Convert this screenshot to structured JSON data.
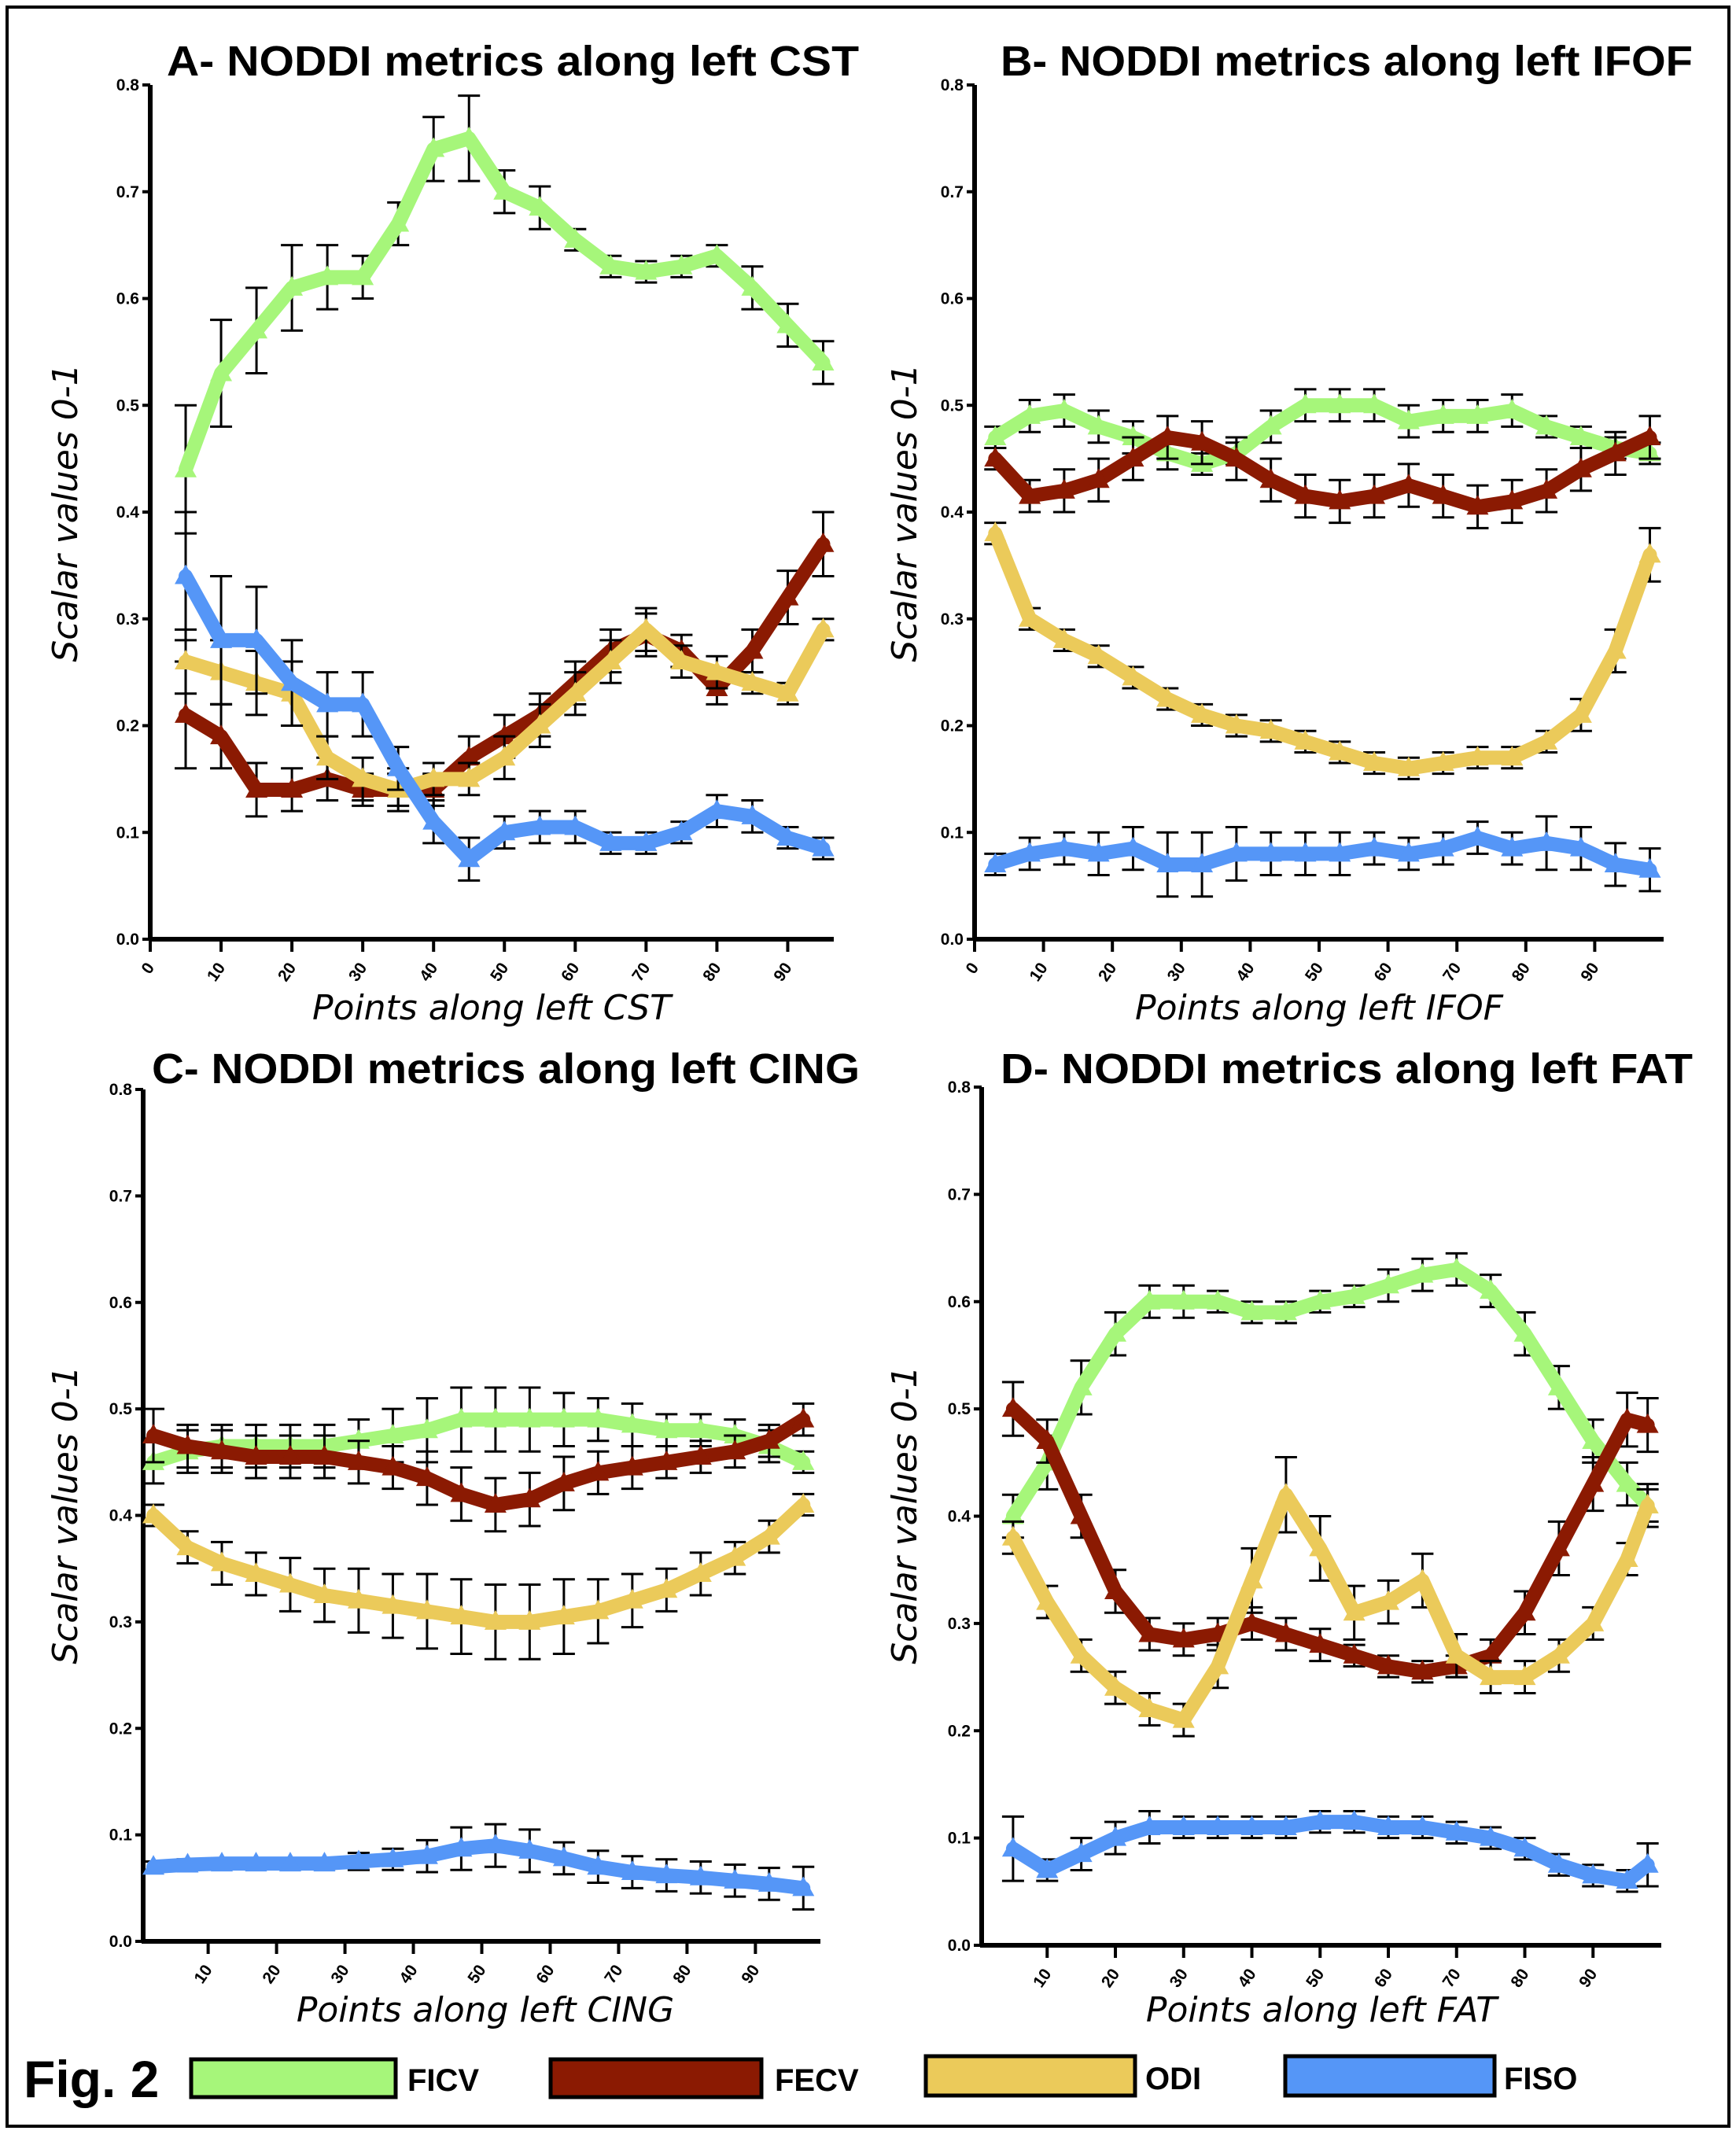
{
  "figure_label": "Fig. 2",
  "legend": [
    {
      "name": "FICV",
      "color": "#a6f67a"
    },
    {
      "name": "FECV",
      "color": "#8b1a02"
    },
    {
      "name": "ODI",
      "color": "#ebca5a"
    },
    {
      "name": "FISO",
      "color": "#5596f7"
    }
  ],
  "chart_data": [
    {
      "type": "line",
      "title": "A- NODDI metrics along left CST",
      "xlabel": "Points along left CST",
      "ylabel": "Scalar values 0-1",
      "xlim": [
        0,
        96.5
      ],
      "ylim": [
        0,
        0.8
      ],
      "xticks": [
        "0",
        "10",
        "20",
        "30",
        "40",
        "50",
        "60",
        "70",
        "80",
        "90"
      ],
      "yticks": [
        "0.0",
        "0.1",
        "0.2",
        "0.3",
        "0.4",
        "0.5",
        "0.6",
        "0.7",
        "0.8"
      ],
      "x": [
        5,
        10,
        15,
        20,
        25,
        30,
        35,
        40,
        45,
        50,
        55,
        60,
        65,
        70,
        75,
        80,
        85,
        90,
        95
      ],
      "series": [
        {
          "name": "FICV",
          "values": [
            0.44,
            0.53,
            0.57,
            0.61,
            0.62,
            0.62,
            0.67,
            0.74,
            0.75,
            0.7,
            0.685,
            0.655,
            0.63,
            0.625,
            0.63,
            0.64,
            0.61,
            0.575,
            0.54
          ],
          "error": [
            0.06,
            0.05,
            0.04,
            0.04,
            0.03,
            0.02,
            0.02,
            0.03,
            0.04,
            0.02,
            0.02,
            0.01,
            0.01,
            0.01,
            0.01,
            0.01,
            0.02,
            0.02,
            0.02
          ]
        },
        {
          "name": "FECV",
          "values": [
            0.21,
            0.19,
            0.14,
            0.14,
            0.15,
            0.14,
            0.14,
            0.14,
            0.17,
            0.19,
            0.21,
            0.24,
            0.27,
            0.285,
            0.27,
            0.235,
            0.27,
            0.32,
            0.37
          ],
          "error": [
            0.05,
            0.03,
            0.025,
            0.02,
            0.02,
            0.015,
            0.015,
            0.015,
            0.02,
            0.02,
            0.02,
            0.02,
            0.02,
            0.02,
            0.015,
            0.015,
            0.02,
            0.025,
            0.03
          ]
        },
        {
          "name": "ODI",
          "values": [
            0.26,
            0.25,
            0.24,
            0.23,
            0.17,
            0.15,
            0.14,
            0.15,
            0.15,
            0.17,
            0.2,
            0.23,
            0.26,
            0.29,
            0.26,
            0.25,
            0.24,
            0.23,
            0.29
          ],
          "error": [
            0.03,
            0.03,
            0.03,
            0.03,
            0.02,
            0.02,
            0.02,
            0.015,
            0.015,
            0.02,
            0.02,
            0.02,
            0.02,
            0.02,
            0.015,
            0.015,
            0.01,
            0.01,
            0.01
          ]
        },
        {
          "name": "FISO",
          "values": [
            0.34,
            0.28,
            0.28,
            0.24,
            0.22,
            0.22,
            0.16,
            0.11,
            0.075,
            0.1,
            0.105,
            0.105,
            0.09,
            0.09,
            0.1,
            0.12,
            0.115,
            0.095,
            0.085
          ],
          "error": [
            0.06,
            0.06,
            0.05,
            0.04,
            0.03,
            0.03,
            0.02,
            0.02,
            0.02,
            0.015,
            0.015,
            0.015,
            0.01,
            0.01,
            0.01,
            0.015,
            0.015,
            0.01,
            0.01
          ]
        }
      ]
    },
    {
      "type": "line",
      "title": "B- NODDI metrics along left IFOF",
      "xlabel": "Points along left IFOF",
      "ylabel": "Scalar values 0-1",
      "xlim": [
        0,
        100
      ],
      "ylim": [
        0,
        0.8
      ],
      "xticks": [
        "0",
        "10",
        "20",
        "30",
        "40",
        "50",
        "60",
        "70",
        "80",
        "90"
      ],
      "yticks": [
        "0.0",
        "0.1",
        "0.2",
        "0.3",
        "0.4",
        "0.5",
        "0.6",
        "0.7",
        "0.8"
      ],
      "x": [
        3,
        8,
        13,
        18,
        23,
        28,
        33,
        38,
        43,
        48,
        53,
        58,
        63,
        68,
        73,
        78,
        83,
        88,
        93,
        98
      ],
      "series": [
        {
          "name": "FICV",
          "values": [
            0.47,
            0.49,
            0.495,
            0.48,
            0.47,
            0.455,
            0.445,
            0.455,
            0.48,
            0.5,
            0.5,
            0.5,
            0.485,
            0.49,
            0.49,
            0.495,
            0.48,
            0.47,
            0.46,
            0.455
          ],
          "error": [
            0.01,
            0.015,
            0.015,
            0.015,
            0.015,
            0.015,
            0.01,
            0.01,
            0.015,
            0.015,
            0.015,
            0.015,
            0.015,
            0.015,
            0.015,
            0.015,
            0.01,
            0.01,
            0.01,
            0.01
          ]
        },
        {
          "name": "FECV",
          "values": [
            0.45,
            0.415,
            0.42,
            0.43,
            0.45,
            0.47,
            0.465,
            0.45,
            0.43,
            0.415,
            0.41,
            0.415,
            0.425,
            0.415,
            0.405,
            0.41,
            0.42,
            0.44,
            0.455,
            0.47
          ],
          "error": [
            0.01,
            0.015,
            0.02,
            0.02,
            0.02,
            0.02,
            0.02,
            0.02,
            0.02,
            0.02,
            0.02,
            0.02,
            0.02,
            0.02,
            0.02,
            0.02,
            0.02,
            0.02,
            0.02,
            0.02
          ]
        },
        {
          "name": "ODI",
          "values": [
            0.38,
            0.3,
            0.28,
            0.265,
            0.245,
            0.225,
            0.21,
            0.2,
            0.195,
            0.185,
            0.175,
            0.165,
            0.16,
            0.165,
            0.17,
            0.17,
            0.185,
            0.21,
            0.27,
            0.36
          ],
          "error": [
            0.01,
            0.01,
            0.01,
            0.01,
            0.01,
            0.01,
            0.01,
            0.01,
            0.01,
            0.01,
            0.01,
            0.01,
            0.01,
            0.01,
            0.01,
            0.01,
            0.01,
            0.015,
            0.02,
            0.025
          ]
        },
        {
          "name": "FISO",
          "values": [
            0.07,
            0.08,
            0.085,
            0.08,
            0.085,
            0.07,
            0.07,
            0.08,
            0.08,
            0.08,
            0.08,
            0.085,
            0.08,
            0.085,
            0.095,
            0.085,
            0.09,
            0.085,
            0.07,
            0.065
          ],
          "error": [
            0.01,
            0.015,
            0.015,
            0.02,
            0.02,
            0.03,
            0.03,
            0.025,
            0.02,
            0.02,
            0.02,
            0.015,
            0.015,
            0.015,
            0.015,
            0.015,
            0.025,
            0.02,
            0.02,
            0.02
          ]
        }
      ]
    },
    {
      "type": "line",
      "title": "C- NODDI metrics along left CING",
      "xlabel": "Points along left CING",
      "ylabel": "Scalar values 0-1",
      "xlim": [
        0.5,
        99.5
      ],
      "ylim": [
        0,
        0.8
      ],
      "xticks": [
        "10",
        "20",
        "30",
        "40",
        "50",
        "60",
        "70",
        "80",
        "90"
      ],
      "yticks": [
        "0.0",
        "0.1",
        "0.2",
        "0.3",
        "0.4",
        "0.5",
        "0.6",
        "0.7",
        "0.8"
      ],
      "x": [
        2,
        7,
        12,
        17,
        22,
        27,
        32,
        37,
        42,
        47,
        52,
        57,
        62,
        67,
        72,
        77,
        82,
        87,
        92,
        97
      ],
      "series": [
        {
          "name": "FICV",
          "values": [
            0.45,
            0.46,
            0.465,
            0.465,
            0.465,
            0.465,
            0.47,
            0.475,
            0.48,
            0.49,
            0.49,
            0.49,
            0.49,
            0.49,
            0.485,
            0.48,
            0.48,
            0.475,
            0.465,
            0.45
          ],
          "error": [
            0.02,
            0.02,
            0.02,
            0.02,
            0.02,
            0.02,
            0.02,
            0.025,
            0.03,
            0.03,
            0.03,
            0.03,
            0.025,
            0.02,
            0.02,
            0.015,
            0.015,
            0.015,
            0.015,
            0.01
          ]
        },
        {
          "name": "FECV",
          "values": [
            0.475,
            0.465,
            0.46,
            0.455,
            0.455,
            0.455,
            0.45,
            0.445,
            0.435,
            0.42,
            0.41,
            0.415,
            0.43,
            0.44,
            0.445,
            0.45,
            0.455,
            0.46,
            0.47,
            0.49
          ],
          "error": [
            0.025,
            0.02,
            0.02,
            0.02,
            0.02,
            0.02,
            0.02,
            0.02,
            0.025,
            0.025,
            0.025,
            0.025,
            0.025,
            0.02,
            0.02,
            0.015,
            0.015,
            0.015,
            0.015,
            0.015
          ]
        },
        {
          "name": "ODI",
          "values": [
            0.4,
            0.37,
            0.355,
            0.345,
            0.335,
            0.325,
            0.32,
            0.315,
            0.31,
            0.305,
            0.3,
            0.3,
            0.305,
            0.31,
            0.32,
            0.33,
            0.345,
            0.36,
            0.38,
            0.41
          ],
          "error": [
            0.01,
            0.015,
            0.02,
            0.02,
            0.025,
            0.025,
            0.03,
            0.03,
            0.035,
            0.035,
            0.035,
            0.035,
            0.035,
            0.03,
            0.025,
            0.02,
            0.02,
            0.015,
            0.015,
            0.01
          ]
        },
        {
          "name": "FISO",
          "values": [
            0.07,
            0.072,
            0.073,
            0.073,
            0.073,
            0.073,
            0.075,
            0.077,
            0.08,
            0.087,
            0.09,
            0.085,
            0.078,
            0.07,
            0.065,
            0.062,
            0.06,
            0.057,
            0.054,
            0.05
          ],
          "error": [
            0.005,
            0.005,
            0.005,
            0.005,
            0.005,
            0.005,
            0.008,
            0.01,
            0.015,
            0.02,
            0.02,
            0.02,
            0.015,
            0.015,
            0.015,
            0.015,
            0.015,
            0.015,
            0.015,
            0.02
          ]
        }
      ]
    },
    {
      "type": "line",
      "title": "D- NODDI metrics along left FAT",
      "xlabel": "Points along left FAT",
      "ylabel": "Scalar values 0-1",
      "xlim": [
        0.4,
        100
      ],
      "ylim": [
        0,
        0.8
      ],
      "xticks": [
        "10",
        "20",
        "30",
        "40",
        "50",
        "60",
        "70",
        "80",
        "90"
      ],
      "yticks": [
        "0.0",
        "0.1",
        "0.2",
        "0.3",
        "0.4",
        "0.5",
        "0.6",
        "0.7",
        "0.8"
      ],
      "x": [
        5,
        10,
        15,
        20,
        25,
        30,
        35,
        40,
        45,
        50,
        55,
        60,
        65,
        70,
        75,
        80,
        85,
        90,
        95,
        98
      ],
      "series": [
        {
          "name": "FICV",
          "values": [
            0.4,
            0.45,
            0.52,
            0.57,
            0.6,
            0.6,
            0.6,
            0.59,
            0.59,
            0.6,
            0.605,
            0.615,
            0.625,
            0.63,
            0.61,
            0.57,
            0.52,
            0.47,
            0.43,
            0.41
          ],
          "error": [
            0.02,
            0.025,
            0.025,
            0.02,
            0.015,
            0.015,
            0.01,
            0.01,
            0.01,
            0.01,
            0.01,
            0.015,
            0.015,
            0.015,
            0.015,
            0.02,
            0.02,
            0.02,
            0.02,
            0.02
          ]
        },
        {
          "name": "FECV",
          "values": [
            0.5,
            0.47,
            0.4,
            0.33,
            0.29,
            0.285,
            0.29,
            0.3,
            0.29,
            0.28,
            0.27,
            0.26,
            0.255,
            0.26,
            0.27,
            0.31,
            0.37,
            0.43,
            0.49,
            0.485
          ],
          "error": [
            0.025,
            0.02,
            0.02,
            0.02,
            0.015,
            0.015,
            0.015,
            0.015,
            0.015,
            0.015,
            0.01,
            0.01,
            0.01,
            0.01,
            0.015,
            0.02,
            0.025,
            0.025,
            0.025,
            0.025
          ]
        },
        {
          "name": "ODI",
          "values": [
            0.38,
            0.32,
            0.27,
            0.24,
            0.22,
            0.21,
            0.26,
            0.34,
            0.42,
            0.37,
            0.31,
            0.32,
            0.34,
            0.27,
            0.25,
            0.25,
            0.27,
            0.3,
            0.36,
            0.41
          ],
          "error": [
            0.015,
            0.015,
            0.015,
            0.015,
            0.015,
            0.015,
            0.02,
            0.03,
            0.035,
            0.03,
            0.025,
            0.02,
            0.025,
            0.02,
            0.015,
            0.015,
            0.015,
            0.015,
            0.015,
            0.015
          ]
        },
        {
          "name": "FISO",
          "values": [
            0.09,
            0.07,
            0.085,
            0.1,
            0.11,
            0.11,
            0.11,
            0.11,
            0.11,
            0.115,
            0.115,
            0.11,
            0.11,
            0.105,
            0.1,
            0.09,
            0.075,
            0.065,
            0.06,
            0.075
          ],
          "error": [
            0.03,
            0.01,
            0.015,
            0.015,
            0.015,
            0.01,
            0.01,
            0.01,
            0.01,
            0.01,
            0.01,
            0.01,
            0.01,
            0.01,
            0.01,
            0.01,
            0.01,
            0.01,
            0.01,
            0.02
          ]
        }
      ]
    }
  ]
}
